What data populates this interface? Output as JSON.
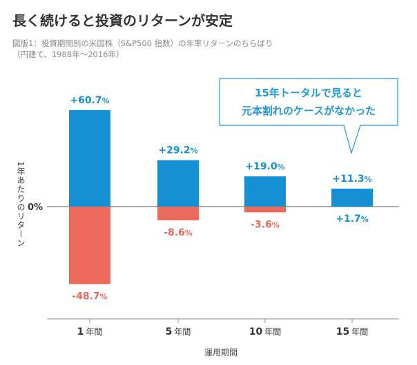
{
  "colors": {
    "positive": "#1590d5",
    "negative": "#ec6a5b",
    "callout_border": "#1e9ad6",
    "callout_text": "#1e9ad6",
    "axis": "#555555"
  },
  "chart_data": {
    "type": "bar",
    "title": "長く続けると投資のリターンが安定",
    "subtitle_lines": [
      "図版1：投資期間別の米国株（S&P500 指数）の年率リターンのちらばり",
      "（円建て、1988年〜2016年）"
    ],
    "xlabel": "運用期間",
    "ylabel": "1年あたりのリターン",
    "zero_label": "0%",
    "ylim": [
      -60,
      75
    ],
    "categories": [
      "1年間",
      "5年間",
      "10年間",
      "15年間"
    ],
    "category_numbers": [
      "1",
      "5",
      "10",
      "15"
    ],
    "category_unit": "年間",
    "series": [
      {
        "name": "max",
        "values": [
          60.7,
          29.2,
          19.0,
          11.3
        ],
        "labels": [
          "+60.7",
          "+29.2",
          "+19.0",
          "+11.3"
        ]
      },
      {
        "name": "min",
        "values": [
          -48.7,
          -8.6,
          -3.6,
          1.7
        ],
        "labels": [
          "-48.7",
          "-8.6",
          "-3.6",
          "+1.7"
        ]
      }
    ],
    "percent_sign": "%",
    "annotation": {
      "lines": [
        "15年トータルで見ると",
        "元本割れのケースがなかった"
      ],
      "target_category": "15年間"
    }
  }
}
